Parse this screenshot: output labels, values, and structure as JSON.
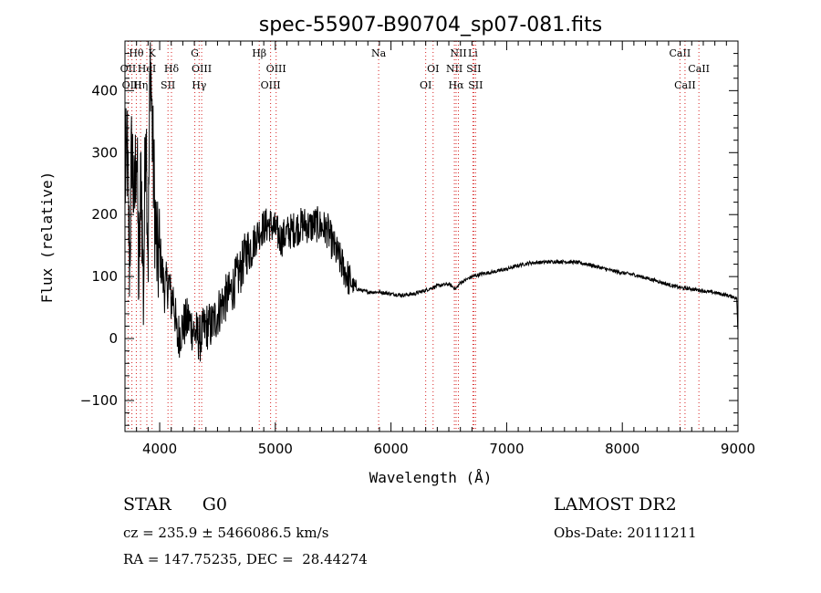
{
  "chart_data": {
    "type": "line",
    "title": "spec-55907-B90704_sp07-081.fits",
    "xlabel": "Wavelength (Å)",
    "ylabel": "Flux (relative)",
    "xlim": [
      3700,
      9000
    ],
    "ylim": [
      -150,
      480
    ],
    "x_ticks": [
      4000,
      5000,
      6000,
      7000,
      8000,
      9000
    ],
    "y_ticks": [
      -100,
      0,
      100,
      200,
      300,
      400
    ],
    "grid": false,
    "line_color": "#000000",
    "marker_color": "#d62020",
    "spectrum_envelope": {
      "x": [
        3700,
        3720,
        3740,
        3760,
        3780,
        3800,
        3820,
        3840,
        3860,
        3880,
        3900,
        3920,
        3940,
        3960,
        3980,
        4000,
        4040,
        4080,
        4100,
        4120,
        4150,
        4200,
        4250,
        4300,
        4350,
        4400,
        4450,
        4500,
        4550,
        4600,
        4650,
        4700,
        4750,
        4800,
        4850,
        4900,
        4950,
        5000,
        5050,
        5100,
        5150,
        5200,
        5250,
        5300,
        5350,
        5400,
        5450,
        5500,
        5550,
        5600,
        5650,
        5700,
        5800,
        5900,
        6000,
        6100,
        6200,
        6300,
        6400,
        6500,
        6560,
        6600,
        6700,
        6800,
        6900,
        7000,
        7100,
        7200,
        7300,
        7400,
        7500,
        7600,
        7700,
        7800,
        7900,
        8000,
        8100,
        8200,
        8300,
        8400,
        8500,
        8600,
        8700,
        8800,
        8900,
        8960,
        8990,
        9000
      ],
      "y": [
        250,
        300,
        120,
        320,
        200,
        330,
        80,
        280,
        60,
        380,
        130,
        480,
        300,
        200,
        120,
        140,
        80,
        90,
        60,
        70,
        0,
        20,
        30,
        10,
        0,
        20,
        20,
        40,
        60,
        70,
        90,
        110,
        140,
        150,
        170,
        180,
        185,
        175,
        160,
        170,
        175,
        180,
        185,
        180,
        185,
        180,
        175,
        150,
        130,
        110,
        90,
        80,
        75,
        75,
        72,
        70,
        72,
        78,
        85,
        88,
        80,
        90,
        100,
        105,
        108,
        112,
        118,
        122,
        123,
        124,
        124,
        123,
        120,
        115,
        110,
        106,
        103,
        98,
        93,
        87,
        82,
        80,
        77,
        74,
        70,
        67,
        65,
        0
      ]
    },
    "line_markers": [
      {
        "label": "Hθ",
        "wavelength": 3798,
        "row": 1
      },
      {
        "label": "K",
        "wavelength": 3934,
        "row": 1
      },
      {
        "label": "OII",
        "wavelength": 3727,
        "row": 2
      },
      {
        "label": "HeI",
        "wavelength": 3889,
        "row": 2
      },
      {
        "label": "OIII",
        "wavelength": 3760,
        "row": 3
      },
      {
        "label": "Hη",
        "wavelength": 3835,
        "row": 3
      },
      {
        "label": "G",
        "wavelength": 4304,
        "row": 1
      },
      {
        "label": "Hδ",
        "wavelength": 4102,
        "row": 2
      },
      {
        "label": "OIII",
        "wavelength": 4363,
        "row": 2
      },
      {
        "label": "SII",
        "wavelength": 4072,
        "row": 3
      },
      {
        "label": "Hγ",
        "wavelength": 4341,
        "row": 3
      },
      {
        "label": "Hβ",
        "wavelength": 4861,
        "row": 1
      },
      {
        "label": "OIII",
        "wavelength": 5007,
        "row": 2
      },
      {
        "label": "OIII",
        "wavelength": 4959,
        "row": 3
      },
      {
        "label": "Na",
        "wavelength": 5893,
        "row": 1
      },
      {
        "label": "NII",
        "wavelength": 6583,
        "row": 1
      },
      {
        "label": "Li",
        "wavelength": 6708,
        "row": 1
      },
      {
        "label": "OI",
        "wavelength": 6364,
        "row": 2
      },
      {
        "label": "OI",
        "wavelength": 6300,
        "row": 3
      },
      {
        "label": "NII",
        "wavelength": 6548,
        "row": 2
      },
      {
        "label": "SII",
        "wavelength": 6716,
        "row": 2
      },
      {
        "label": "Hα",
        "wavelength": 6563,
        "row": 3
      },
      {
        "label": "SII",
        "wavelength": 6731,
        "row": 3
      },
      {
        "label": "CaII",
        "wavelength": 8498,
        "row": 1
      },
      {
        "label": "CaII",
        "wavelength": 8662,
        "row": 2
      },
      {
        "label": "CaII",
        "wavelength": 8542,
        "row": 3
      }
    ]
  },
  "info": {
    "class": "STAR",
    "subclass": "G0",
    "survey": "LAMOST DR2",
    "cz": "cz = 235.9 ± 5466086.5 km/s",
    "obs_date": "Obs-Date: 20111211",
    "coords": "RA = 147.75235, DEC =  28.44274"
  }
}
